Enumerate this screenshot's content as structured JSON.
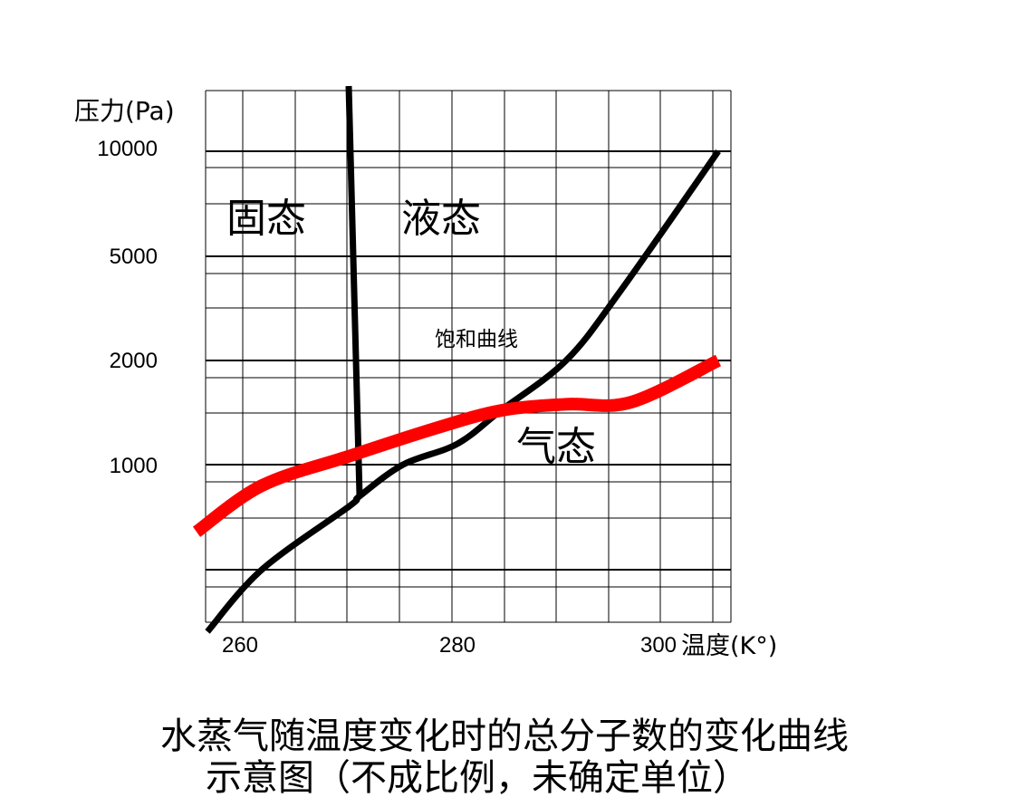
{
  "chart_data": {
    "type": "line",
    "ylabel": "压力(Pa)",
    "xlabel": "温度(K°)",
    "y_ticks": [
      "10000",
      "5000",
      "2000",
      "1000"
    ],
    "x_ticks": [
      "260",
      "280",
      "300"
    ],
    "x_tick_values": [
      260,
      280,
      300
    ],
    "y_tick_values": [
      10000,
      5000,
      2000,
      1000
    ],
    "region_labels": {
      "solid": "固态",
      "liquid": "液态",
      "gas": "气态"
    },
    "annotation": "饱和曲线",
    "series": [
      {
        "color": "#000000",
        "points": [
          [
            257,
            300
          ],
          [
            262,
            500
          ],
          [
            270,
            800
          ],
          [
            271,
            850
          ],
          [
            275,
            1000
          ],
          [
            280,
            1200
          ],
          [
            284,
            1520
          ],
          [
            290,
            2000
          ],
          [
            295,
            4000
          ],
          [
            304,
            10000
          ]
        ]
      },
      {
        "color": "#000000",
        "points": [
          [
            270,
            12000
          ],
          [
            271,
            850
          ]
        ]
      },
      {
        "color": "#ff0000",
        "points": [
          [
            256,
            680
          ],
          [
            262,
            900
          ],
          [
            270,
            1080
          ],
          [
            278,
            1350
          ],
          [
            284,
            1520
          ],
          [
            290,
            1580
          ],
          [
            296,
            1600
          ],
          [
            304,
            2000
          ]
        ]
      }
    ]
  },
  "caption": {
    "line1": "水蒸气随温度变化时的总分子数的变化曲线",
    "line2": "示意图（不成比例，未确定单位）"
  }
}
